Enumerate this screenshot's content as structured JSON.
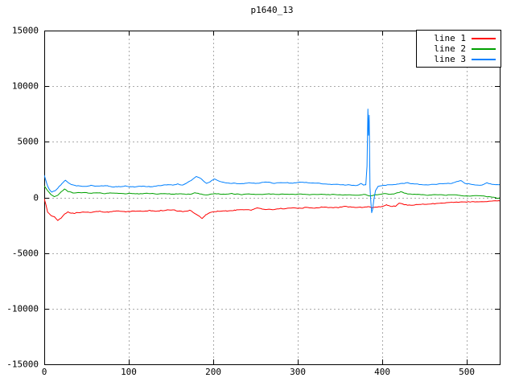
{
  "window": {
    "background": "#ffffff"
  },
  "chart_data": {
    "type": "line",
    "title": "p1640_13",
    "xlabel": "",
    "ylabel": "",
    "xlim": [
      0,
      539
    ],
    "ylim": [
      -15000,
      15000
    ],
    "x_ticks": [
      0,
      100,
      200,
      300,
      400,
      500
    ],
    "y_ticks": [
      -15000,
      -10000,
      -5000,
      0,
      5000,
      10000,
      15000
    ],
    "grid": true,
    "grid_style": "dotted",
    "legend_position": "top-right-inside",
    "colors": {
      "border": "#000000",
      "grid": "#aaaaaa",
      "text": "#000000",
      "background": "#ffffff"
    },
    "series": [
      {
        "name": "line 1",
        "color": "#ff0000",
        "noise_amplitude": 110,
        "points": [
          [
            0,
            -100
          ],
          [
            2,
            -700
          ],
          [
            4,
            -1300
          ],
          [
            8,
            -1600
          ],
          [
            12,
            -1750
          ],
          [
            16,
            -2050
          ],
          [
            20,
            -1900
          ],
          [
            24,
            -1500
          ],
          [
            28,
            -1350
          ],
          [
            35,
            -1450
          ],
          [
            45,
            -1300
          ],
          [
            55,
            -1350
          ],
          [
            65,
            -1280
          ],
          [
            75,
            -1320
          ],
          [
            85,
            -1250
          ],
          [
            95,
            -1280
          ],
          [
            105,
            -1220
          ],
          [
            115,
            -1250
          ],
          [
            125,
            -1180
          ],
          [
            135,
            -1220
          ],
          [
            145,
            -1120
          ],
          [
            155,
            -1160
          ],
          [
            165,
            -1280
          ],
          [
            172,
            -1180
          ],
          [
            178,
            -1400
          ],
          [
            183,
            -1650
          ],
          [
            187,
            -1880
          ],
          [
            191,
            -1600
          ],
          [
            196,
            -1350
          ],
          [
            205,
            -1280
          ],
          [
            215,
            -1220
          ],
          [
            225,
            -1160
          ],
          [
            235,
            -1100
          ],
          [
            245,
            -1130
          ],
          [
            252,
            -950
          ],
          [
            258,
            -1050
          ],
          [
            268,
            -1080
          ],
          [
            278,
            -1020
          ],
          [
            288,
            -1000
          ],
          [
            298,
            -950
          ],
          [
            308,
            -900
          ],
          [
            318,
            -940
          ],
          [
            328,
            -880
          ],
          [
            338,
            -930
          ],
          [
            348,
            -880
          ],
          [
            358,
            -840
          ],
          [
            368,
            -890
          ],
          [
            378,
            -930
          ],
          [
            383,
            -820
          ],
          [
            388,
            -950
          ],
          [
            394,
            -860
          ],
          [
            400,
            -800
          ],
          [
            405,
            -620
          ],
          [
            410,
            -760
          ],
          [
            415,
            -800
          ],
          [
            420,
            -520
          ],
          [
            426,
            -640
          ],
          [
            432,
            -700
          ],
          [
            442,
            -640
          ],
          [
            452,
            -600
          ],
          [
            462,
            -560
          ],
          [
            472,
            -520
          ],
          [
            482,
            -470
          ],
          [
            492,
            -420
          ],
          [
            502,
            -370
          ],
          [
            512,
            -330
          ],
          [
            522,
            -360
          ],
          [
            530,
            -300
          ],
          [
            539,
            -280
          ]
        ]
      },
      {
        "name": "line 2",
        "color": "#00a000",
        "noise_amplitude": 80,
        "points": [
          [
            0,
            1000
          ],
          [
            4,
            600
          ],
          [
            8,
            250
          ],
          [
            12,
            80
          ],
          [
            16,
            200
          ],
          [
            20,
            480
          ],
          [
            24,
            780
          ],
          [
            28,
            550
          ],
          [
            34,
            400
          ],
          [
            42,
            450
          ],
          [
            52,
            380
          ],
          [
            62,
            420
          ],
          [
            72,
            350
          ],
          [
            82,
            390
          ],
          [
            92,
            330
          ],
          [
            102,
            370
          ],
          [
            112,
            320
          ],
          [
            122,
            350
          ],
          [
            132,
            310
          ],
          [
            142,
            350
          ],
          [
            152,
            300
          ],
          [
            162,
            330
          ],
          [
            172,
            280
          ],
          [
            178,
            400
          ],
          [
            184,
            300
          ],
          [
            190,
            230
          ],
          [
            196,
            300
          ],
          [
            204,
            340
          ],
          [
            214,
            290
          ],
          [
            224,
            320
          ],
          [
            234,
            270
          ],
          [
            244,
            300
          ],
          [
            254,
            260
          ],
          [
            264,
            300
          ],
          [
            274,
            250
          ],
          [
            284,
            290
          ],
          [
            294,
            240
          ],
          [
            304,
            290
          ],
          [
            314,
            240
          ],
          [
            324,
            280
          ],
          [
            334,
            230
          ],
          [
            344,
            270
          ],
          [
            354,
            220
          ],
          [
            364,
            260
          ],
          [
            374,
            210
          ],
          [
            380,
            240
          ],
          [
            385,
            120
          ],
          [
            390,
            220
          ],
          [
            396,
            280
          ],
          [
            402,
            340
          ],
          [
            408,
            300
          ],
          [
            414,
            280
          ],
          [
            418,
            420
          ],
          [
            422,
            520
          ],
          [
            426,
            380
          ],
          [
            432,
            300
          ],
          [
            442,
            260
          ],
          [
            452,
            220
          ],
          [
            462,
            260
          ],
          [
            472,
            210
          ],
          [
            482,
            240
          ],
          [
            492,
            180
          ],
          [
            502,
            140
          ],
          [
            512,
            170
          ],
          [
            522,
            100
          ],
          [
            530,
            20
          ],
          [
            535,
            -60
          ],
          [
            539,
            -40
          ]
        ]
      },
      {
        "name": "line 3",
        "color": "#0080ff",
        "noise_amplitude": 90,
        "points": [
          [
            0,
            2000
          ],
          [
            3,
            1200
          ],
          [
            6,
            700
          ],
          [
            9,
            450
          ],
          [
            13,
            600
          ],
          [
            17,
            900
          ],
          [
            21,
            1250
          ],
          [
            25,
            1550
          ],
          [
            29,
            1300
          ],
          [
            35,
            1100
          ],
          [
            45,
            1000
          ],
          [
            55,
            1080
          ],
          [
            65,
            980
          ],
          [
            75,
            1040
          ],
          [
            85,
            950
          ],
          [
            95,
            1010
          ],
          [
            105,
            940
          ],
          [
            115,
            1000
          ],
          [
            125,
            950
          ],
          [
            135,
            1060
          ],
          [
            145,
            1150
          ],
          [
            152,
            1100
          ],
          [
            158,
            1180
          ],
          [
            164,
            1120
          ],
          [
            170,
            1350
          ],
          [
            175,
            1600
          ],
          [
            180,
            1900
          ],
          [
            184,
            1750
          ],
          [
            188,
            1500
          ],
          [
            192,
            1250
          ],
          [
            196,
            1400
          ],
          [
            201,
            1620
          ],
          [
            206,
            1500
          ],
          [
            212,
            1350
          ],
          [
            222,
            1280
          ],
          [
            232,
            1220
          ],
          [
            242,
            1320
          ],
          [
            252,
            1260
          ],
          [
            262,
            1380
          ],
          [
            272,
            1300
          ],
          [
            282,
            1340
          ],
          [
            292,
            1290
          ],
          [
            302,
            1380
          ],
          [
            312,
            1330
          ],
          [
            322,
            1280
          ],
          [
            332,
            1240
          ],
          [
            342,
            1190
          ],
          [
            352,
            1140
          ],
          [
            362,
            1100
          ],
          [
            370,
            1060
          ],
          [
            375,
            1250
          ],
          [
            378,
            1120
          ],
          [
            380.5,
            1150
          ],
          [
            382,
            2800
          ],
          [
            383,
            7950
          ],
          [
            383.8,
            5600
          ],
          [
            384.5,
            7400
          ],
          [
            385.5,
            900
          ],
          [
            386.5,
            -400
          ],
          [
            387.5,
            -1350
          ],
          [
            388.5,
            -1100
          ],
          [
            390,
            -250
          ],
          [
            392,
            600
          ],
          [
            395,
            1000
          ],
          [
            400,
            1080
          ],
          [
            410,
            1140
          ],
          [
            420,
            1230
          ],
          [
            430,
            1300
          ],
          [
            440,
            1210
          ],
          [
            450,
            1120
          ],
          [
            460,
            1160
          ],
          [
            470,
            1200
          ],
          [
            480,
            1260
          ],
          [
            488,
            1420
          ],
          [
            493,
            1480
          ],
          [
            498,
            1250
          ],
          [
            508,
            1160
          ],
          [
            518,
            1110
          ],
          [
            524,
            1300
          ],
          [
            530,
            1180
          ],
          [
            539,
            1150
          ]
        ]
      }
    ]
  }
}
